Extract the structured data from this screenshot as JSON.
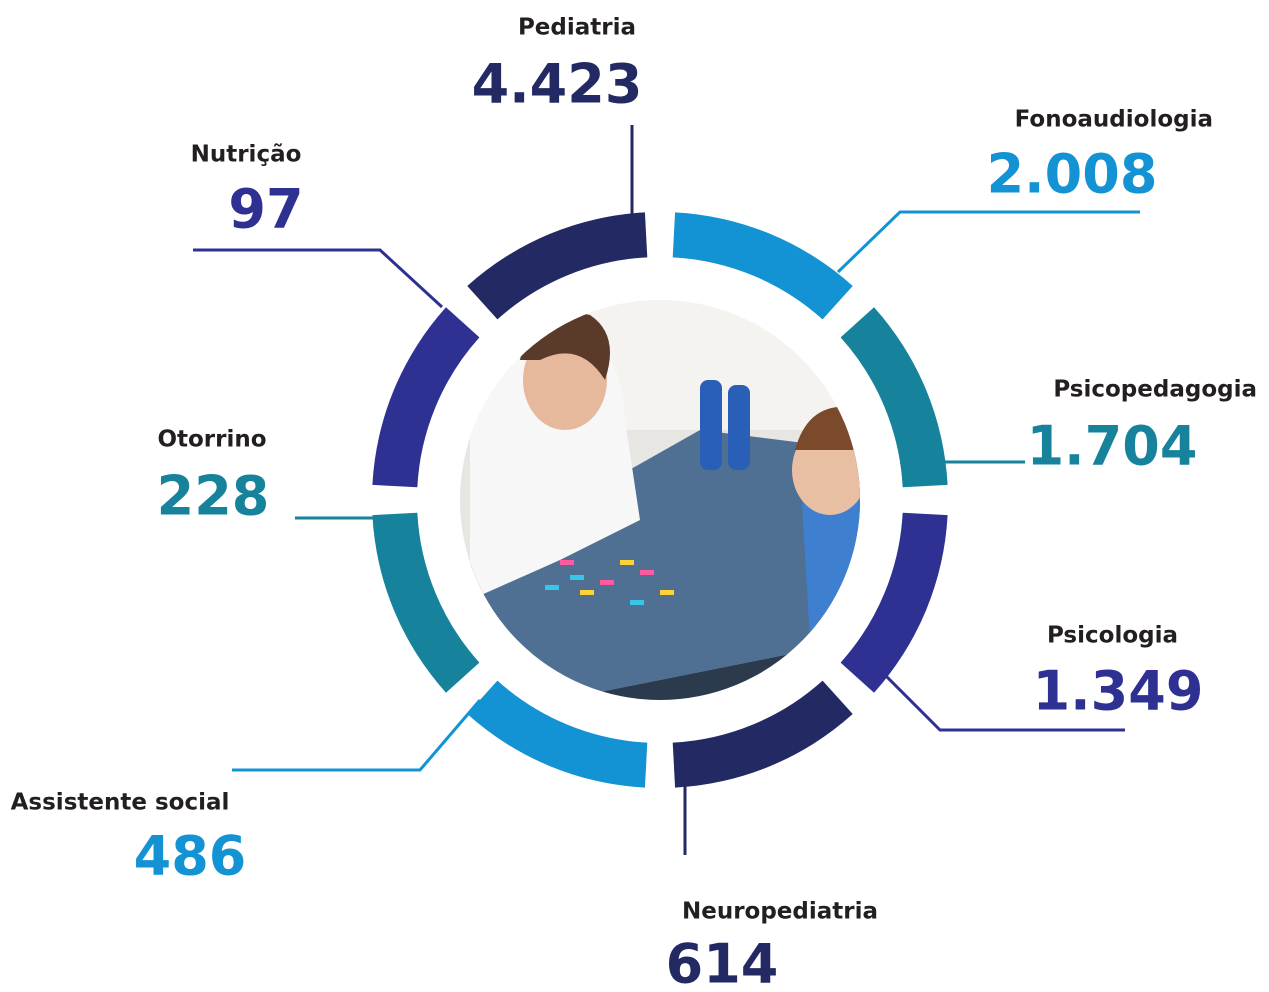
{
  "items": [
    {
      "label": "Pediatria",
      "value": "4.423",
      "color": "#232a63"
    },
    {
      "label": "Fonoaudiologia",
      "value": "2.008",
      "color": "#1393d4"
    },
    {
      "label": "Psicopedagogia",
      "value": "1.704",
      "color": "#17829c"
    },
    {
      "label": "Psicologia",
      "value": "1.349",
      "color": "#2e3192"
    },
    {
      "label": "Neuropediatria",
      "value": "614",
      "color": "#232a63"
    },
    {
      "label": "Assistente social",
      "value": "486",
      "color": "#1393d4"
    },
    {
      "label": "Otorrino",
      "value": "228",
      "color": "#17829c"
    },
    {
      "label": "Nutrição",
      "value": "97",
      "color": "#2e3192"
    }
  ]
}
